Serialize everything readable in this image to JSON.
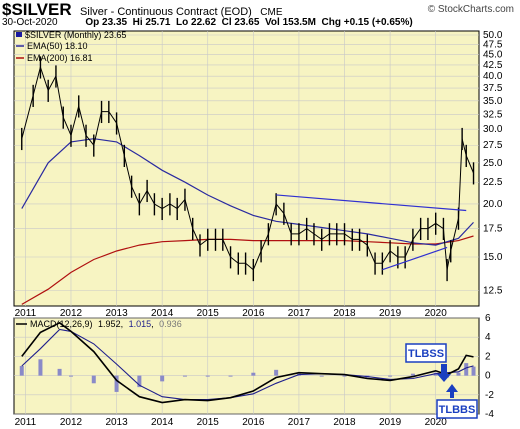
{
  "header": {
    "symbol": "$SILVER",
    "description": "Silver - Continuous Contract (EOD)",
    "exchange": "CME",
    "watermark": "© StockCharts.com",
    "date": "30-Oct-2020",
    "open": "Op 23.35",
    "high": "Hi 25.71",
    "low": "Lo 22.62",
    "close": "Cl 23.65",
    "volume": "Vol 153.5M",
    "change": "Chg +0.15 (+0.65%)"
  },
  "colors": {
    "panel_bg": "#f7f4c2",
    "price": "#000000",
    "ema50": "#2a2aa0",
    "ema200": "#b01010",
    "trendline": "#3030d0",
    "macd": "#000000",
    "signal": "#1f1f8c",
    "histogram": "#8a8ac8",
    "annotation": "#1a3fc0"
  },
  "annotations": {
    "tlbss_top": "TLBSS",
    "tlbbs_bottom": "TLBBS"
  },
  "chart_data": [
    {
      "type": "line",
      "title": "$SILVER (Monthly) 23.65",
      "legend": [
        "$SILVER (Monthly) 23.65",
        "EMA(50) 18.10",
        "EMA(200) 16.81"
      ],
      "legend_placement": "top-left",
      "y_scale": "log",
      "ylim": [
        11.5,
        50
      ],
      "yticks": [
        12.5,
        15.0,
        17.5,
        20.0,
        22.5,
        25.0,
        27.5,
        30.0,
        32.5,
        35.0,
        37.5,
        40.0,
        42.5,
        45.0,
        47.5,
        50.0
      ],
      "x_tick_labels": [
        "2011",
        "2012",
        "2013",
        "2014",
        "2015",
        "2016",
        "2017",
        "2018",
        "2019",
        "2020"
      ],
      "grid": true,
      "series": [
        {
          "name": "$SILVER (Monthly) 23.65",
          "x": [
            2010.92,
            2011.17,
            2011.33,
            2011.5,
            2011.67,
            2011.83,
            2012.0,
            2012.17,
            2012.33,
            2012.5,
            2012.67,
            2012.83,
            2013.0,
            2013.17,
            2013.33,
            2013.5,
            2013.67,
            2013.83,
            2014.0,
            2014.17,
            2014.33,
            2014.5,
            2014.67,
            2014.83,
            2015.0,
            2015.17,
            2015.33,
            2015.5,
            2015.67,
            2015.83,
            2016.0,
            2016.17,
            2016.33,
            2016.5,
            2016.67,
            2016.83,
            2017.0,
            2017.17,
            2017.33,
            2017.5,
            2017.67,
            2017.83,
            2018.0,
            2018.17,
            2018.33,
            2018.5,
            2018.67,
            2018.83,
            2019.0,
            2019.17,
            2019.33,
            2019.5,
            2019.67,
            2019.83,
            2020.0,
            2020.17,
            2020.25,
            2020.33,
            2020.5,
            2020.58,
            2020.67,
            2020.83
          ],
          "values": [
            28.5,
            36.0,
            42.0,
            37.0,
            40.0,
            32.0,
            29.0,
            34.0,
            29.0,
            27.5,
            33.0,
            33.0,
            31.0,
            26.0,
            22.0,
            20.0,
            21.5,
            20.0,
            19.5,
            20.0,
            19.5,
            20.5,
            17.5,
            16.0,
            16.5,
            16.5,
            16.5,
            15.0,
            14.5,
            14.5,
            14.0,
            15.5,
            17.0,
            20.0,
            19.0,
            17.0,
            17.0,
            17.5,
            17.0,
            16.5,
            17.0,
            17.0,
            17.0,
            16.5,
            16.5,
            16.0,
            14.5,
            14.5,
            15.5,
            15.0,
            15.0,
            16.5,
            17.5,
            17.5,
            18.0,
            17.5,
            14.0,
            15.5,
            18.5,
            28.5,
            26.0,
            23.65
          ]
        },
        {
          "name": "EMA(50) 18.10",
          "x": [
            2010.92,
            2011.5,
            2012.0,
            2012.5,
            2013.0,
            2013.5,
            2014.0,
            2014.5,
            2015.0,
            2015.5,
            2016.0,
            2016.5,
            2017.0,
            2017.5,
            2018.0,
            2018.5,
            2019.0,
            2019.5,
            2020.0,
            2020.5,
            2020.83
          ],
          "values": [
            19.5,
            25.0,
            28.0,
            28.5,
            28.0,
            26.0,
            24.0,
            22.5,
            21.0,
            19.8,
            18.8,
            18.2,
            17.9,
            17.6,
            17.3,
            17.0,
            16.6,
            16.2,
            16.0,
            16.6,
            18.1
          ]
        },
        {
          "name": "EMA(200) 16.81",
          "x": [
            2010.92,
            2011.5,
            2012.0,
            2012.5,
            2013.0,
            2013.5,
            2014.0,
            2014.5,
            2015.0,
            2015.5,
            2016.0,
            2016.5,
            2017.0,
            2017.5,
            2018.0,
            2018.5,
            2019.0,
            2019.5,
            2020.0,
            2020.5,
            2020.83
          ],
          "values": [
            11.6,
            12.6,
            13.8,
            14.8,
            15.5,
            16.0,
            16.3,
            16.4,
            16.5,
            16.5,
            16.4,
            16.4,
            16.4,
            16.4,
            16.4,
            16.3,
            16.2,
            16.1,
            16.1,
            16.4,
            16.81
          ]
        }
      ],
      "trendlines": [
        {
          "x": [
            2016.5,
            2020.67
          ],
          "values": [
            21.0,
            19.3
          ]
        },
        {
          "x": [
            2018.83,
            2020.25
          ],
          "values": [
            14.0,
            15.8
          ]
        }
      ]
    },
    {
      "type": "line",
      "title": "MACD(12,26,9) 1.952, 1.015, 0.936",
      "legend": [
        "MACD(12,26,9)",
        "1.952",
        "1.015",
        "0.936"
      ],
      "ylim": [
        -4,
        6
      ],
      "yticks": [
        -4,
        -2,
        0,
        2,
        4,
        6
      ],
      "x_tick_labels": [
        "2011",
        "2012",
        "2013",
        "2014",
        "2015",
        "2016",
        "2017",
        "2018",
        "2019",
        "2020"
      ],
      "series": [
        {
          "name": "MACD",
          "x": [
            2010.92,
            2011.33,
            2011.75,
            2012.0,
            2012.5,
            2013.0,
            2013.5,
            2014.0,
            2014.5,
            2015.0,
            2015.5,
            2016.0,
            2016.5,
            2017.0,
            2017.5,
            2018.0,
            2018.5,
            2019.0,
            2019.5,
            2020.0,
            2020.25,
            2020.5,
            2020.67,
            2020.83
          ],
          "values": [
            2.0,
            4.5,
            5.5,
            4.6,
            2.5,
            -0.5,
            -2.2,
            -2.8,
            -2.5,
            -2.6,
            -2.3,
            -1.6,
            -0.2,
            0.3,
            0.2,
            0.1,
            -0.3,
            -0.5,
            -0.1,
            0.5,
            0.1,
            0.7,
            2.1,
            1.952
          ]
        },
        {
          "name": "Signal",
          "x": [
            2010.92,
            2011.33,
            2011.75,
            2012.0,
            2012.5,
            2013.0,
            2013.5,
            2014.0,
            2014.5,
            2015.0,
            2015.5,
            2016.0,
            2016.5,
            2017.0,
            2017.5,
            2018.0,
            2018.5,
            2019.0,
            2019.5,
            2020.0,
            2020.25,
            2020.5,
            2020.67,
            2020.83
          ],
          "values": [
            1.0,
            2.8,
            4.8,
            4.6,
            3.3,
            1.2,
            -1.0,
            -2.2,
            -2.5,
            -2.5,
            -2.3,
            -1.9,
            -0.8,
            0.1,
            0.2,
            0.1,
            -0.1,
            -0.4,
            -0.3,
            0.2,
            0.3,
            0.4,
            0.8,
            1.015
          ]
        },
        {
          "name": "Histogram",
          "x": [
            2010.92,
            2011.33,
            2011.75,
            2012.0,
            2012.5,
            2013.0,
            2013.5,
            2014.0,
            2014.5,
            2015.0,
            2015.5,
            2016.0,
            2016.5,
            2017.0,
            2017.5,
            2018.0,
            2018.5,
            2019.0,
            2019.5,
            2020.0,
            2020.25,
            2020.5,
            2020.67,
            2020.83
          ],
          "values": [
            1.0,
            1.7,
            0.7,
            0.0,
            -0.8,
            -1.7,
            -1.2,
            -0.6,
            0.0,
            -0.1,
            0.0,
            0.3,
            0.6,
            0.2,
            0.0,
            0.0,
            -0.2,
            -0.1,
            0.2,
            0.3,
            -0.2,
            0.3,
            1.3,
            0.936
          ]
        }
      ]
    }
  ]
}
